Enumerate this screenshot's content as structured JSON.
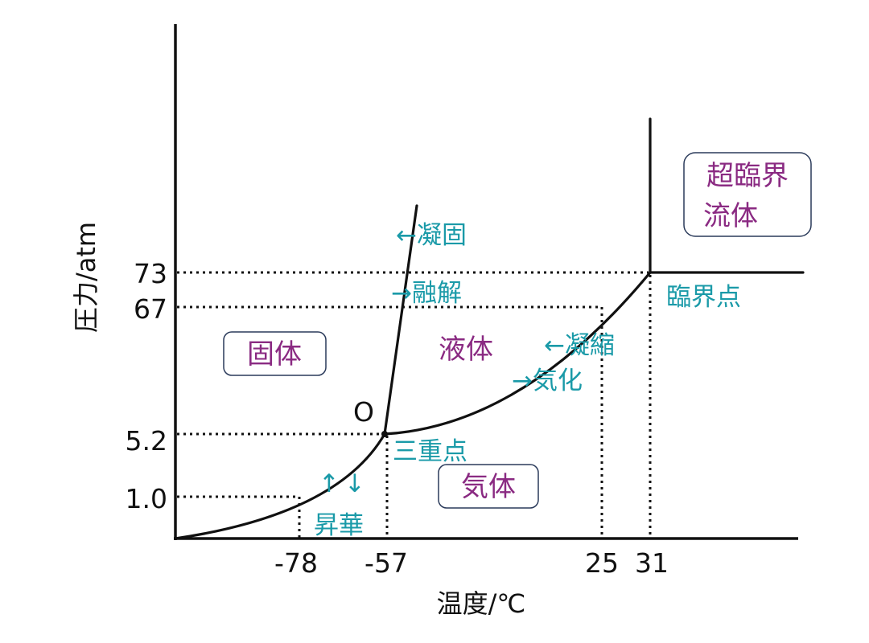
{
  "axes": {
    "x_title": "温度/℃",
    "y_title": "圧力/atm",
    "x_ticks": [
      "-78",
      "-57",
      "25",
      "31"
    ],
    "y_ticks": [
      "73",
      "67",
      "5.2",
      "1.0"
    ]
  },
  "phases": {
    "solid": "固体",
    "liquid": "液体",
    "gas": "気体",
    "supercritical_line1": "超臨界",
    "supercritical_line2": "流体"
  },
  "points": {
    "triple_point_marker": "O",
    "triple_point": "三重点",
    "critical_point": "臨界点"
  },
  "processes": {
    "freezing": "←凝固",
    "melting": "→融解",
    "condensation": "←凝縮",
    "vaporization": "→気化",
    "sublimation_arrows": "↑↓",
    "sublimation": "昇華"
  },
  "colors": {
    "lines": "#111111",
    "process_text": "#1a9aa8",
    "phase_text": "#8a2a82",
    "box_border": "#2a3a5a"
  }
}
